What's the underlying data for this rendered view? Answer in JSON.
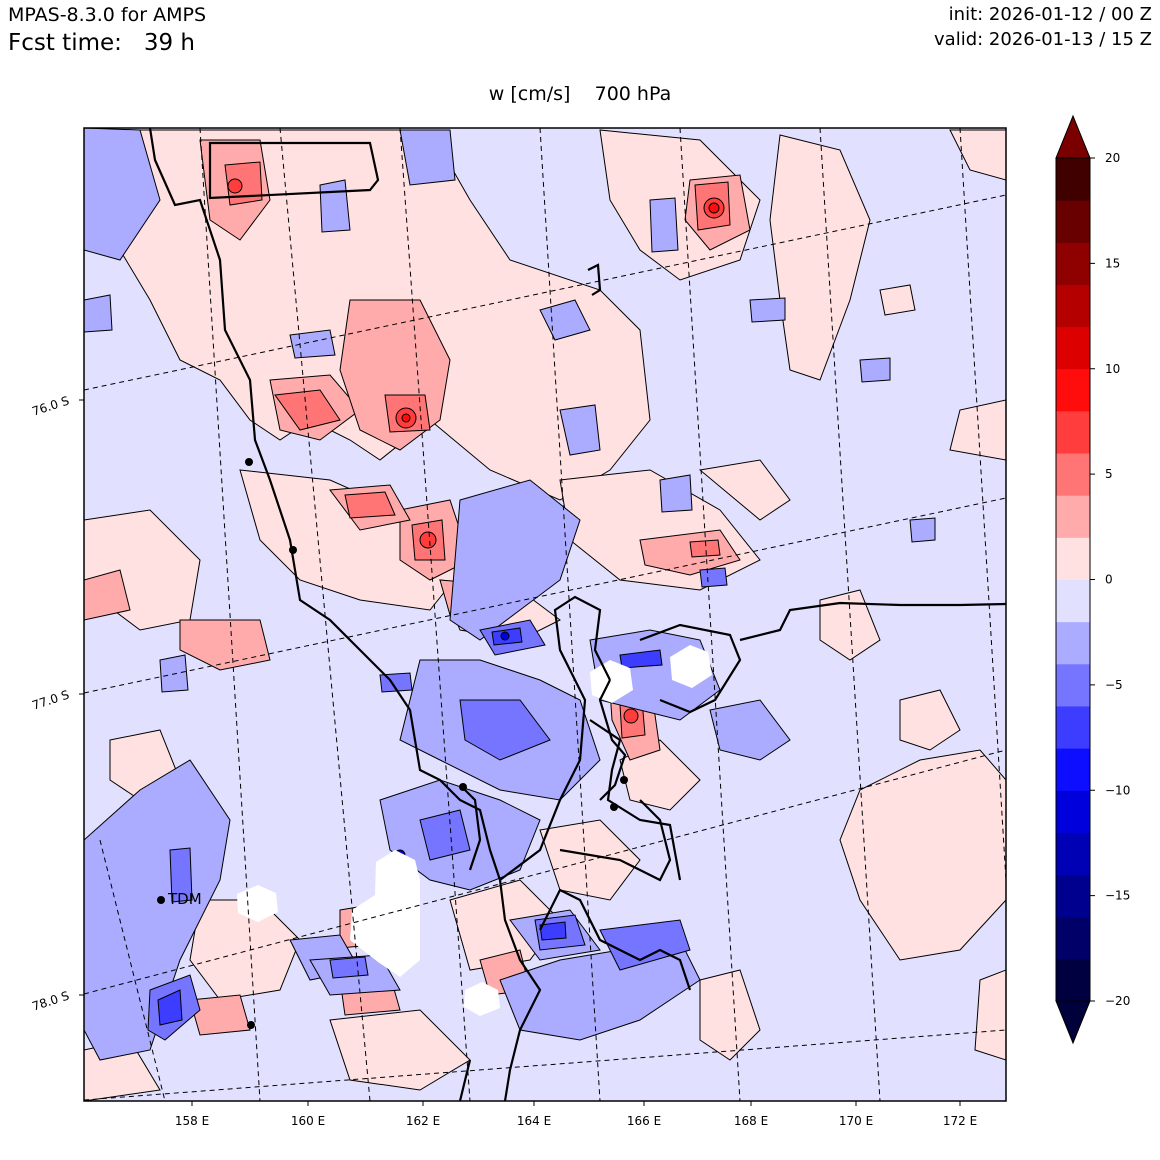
{
  "header": {
    "model": "MPAS-8.3.0 for AMPS",
    "fcst_label": "Fcst time:",
    "fcst_value": "39 h",
    "init": "init: 2026-01-12 / 00 Z",
    "valid": "valid: 2026-01-13 / 15 Z"
  },
  "title": {
    "field": "w [cm/s]",
    "level": "700 hPa"
  },
  "map": {
    "lon_ticks": [
      "158 E",
      "160 E",
      "162 E",
      "164 E",
      "166 E",
      "168 E",
      "170 E",
      "172 E"
    ],
    "lat_ticks": [
      "76.0 S",
      "77.0 S",
      "78.0 S"
    ],
    "station_label": "TDM"
  },
  "colorbar": {
    "ticks": [
      "20",
      "15",
      "10",
      "5",
      "0",
      "−5",
      "−10",
      "−15",
      "−20"
    ],
    "colors": [
      "#000040",
      "#000068",
      "#00008f",
      "#0000b5",
      "#0000dc",
      "#0d0dff",
      "#3d3dff",
      "#7575ff",
      "#ababff",
      "#e1e1ff",
      "#ffe1e1",
      "#ffabab",
      "#ff7575",
      "#ff3d3d",
      "#ff0d0d",
      "#dc0000",
      "#b50000",
      "#8f0000",
      "#680000",
      "#400000"
    ],
    "extend_min_color": "#00003a",
    "extend_max_color": "#7a0000"
  }
}
